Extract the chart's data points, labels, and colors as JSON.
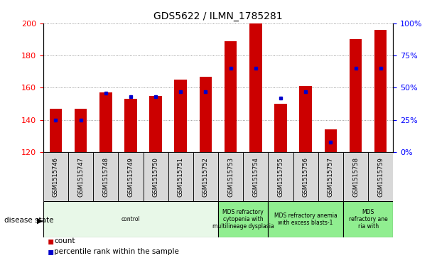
{
  "title": "GDS5622 / ILMN_1785281",
  "samples": [
    "GSM1515746",
    "GSM1515747",
    "GSM1515748",
    "GSM1515749",
    "GSM1515750",
    "GSM1515751",
    "GSM1515752",
    "GSM1515753",
    "GSM1515754",
    "GSM1515755",
    "GSM1515756",
    "GSM1515757",
    "GSM1515758",
    "GSM1515759"
  ],
  "counts": [
    147,
    147,
    157,
    153,
    155,
    165,
    167,
    189,
    200,
    150,
    161,
    134,
    190,
    196
  ],
  "percentile_ranks": [
    25,
    25,
    46,
    43,
    43,
    47,
    47,
    65,
    65,
    42,
    47,
    8,
    65,
    65
  ],
  "ylim_left": [
    120,
    200
  ],
  "ylim_right": [
    0,
    100
  ],
  "yticks_left": [
    120,
    140,
    160,
    180,
    200
  ],
  "yticks_right": [
    0,
    25,
    50,
    75,
    100
  ],
  "bar_color": "#cc0000",
  "dot_color": "#0000cc",
  "bar_bottom": 120,
  "disease_groups": [
    {
      "label": "control",
      "start": 0,
      "end": 7,
      "color": "#e8f8e8"
    },
    {
      "label": "MDS refractory\ncytopenia with\nmultilineage dysplasia",
      "start": 7,
      "end": 9,
      "color": "#90ee90"
    },
    {
      "label": "MDS refractory anemia\nwith excess blasts-1",
      "start": 9,
      "end": 12,
      "color": "#90ee90"
    },
    {
      "label": "MDS\nrefractory ane\nria with",
      "start": 12,
      "end": 14,
      "color": "#90ee90"
    }
  ],
  "fig_width": 6.08,
  "fig_height": 3.63,
  "dpi": 100
}
